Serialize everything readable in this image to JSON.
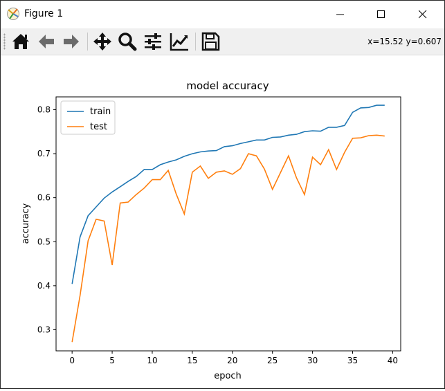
{
  "window": {
    "title": "Figure 1"
  },
  "toolbar": {
    "tools": [
      "home-icon",
      "back-arrow-icon",
      "forward-arrow-icon",
      "pan-icon",
      "zoom-icon",
      "subplots-config-icon",
      "edit-axis-icon",
      "save-icon"
    ],
    "coords": "x=15.52 y=0.607"
  },
  "chart_data": {
    "type": "line",
    "title": "model accuracy",
    "xlabel": "epoch",
    "ylabel": "accuracy",
    "xlim": [
      -2,
      41
    ],
    "ylim": [
      0.252,
      0.829
    ],
    "xticks": [
      0,
      5,
      10,
      15,
      20,
      25,
      30,
      35,
      40
    ],
    "yticks": [
      0.3,
      0.4,
      0.5,
      0.6,
      0.7,
      0.8
    ],
    "legend": "upper-left",
    "grid": false,
    "x": [
      0,
      1,
      2,
      3,
      4,
      5,
      6,
      7,
      8,
      9,
      10,
      11,
      12,
      13,
      14,
      15,
      16,
      17,
      18,
      19,
      20,
      21,
      22,
      23,
      24,
      25,
      26,
      27,
      28,
      29,
      30,
      31,
      32,
      33,
      34,
      35,
      36,
      37,
      38,
      39
    ],
    "series": [
      {
        "name": "train",
        "color": "#1f77b4",
        "values": [
          0.404,
          0.511,
          0.559,
          0.579,
          0.599,
          0.613,
          0.625,
          0.637,
          0.648,
          0.664,
          0.664,
          0.675,
          0.681,
          0.686,
          0.694,
          0.7,
          0.704,
          0.706,
          0.707,
          0.716,
          0.718,
          0.723,
          0.727,
          0.731,
          0.731,
          0.737,
          0.738,
          0.742,
          0.744,
          0.75,
          0.752,
          0.751,
          0.76,
          0.76,
          0.764,
          0.794,
          0.804,
          0.805,
          0.81,
          0.81
        ]
      },
      {
        "name": "test",
        "color": "#ff7f0e",
        "values": [
          0.272,
          0.378,
          0.502,
          0.551,
          0.547,
          0.447,
          0.588,
          0.59,
          0.607,
          0.622,
          0.641,
          0.641,
          0.662,
          0.608,
          0.563,
          0.658,
          0.672,
          0.644,
          0.658,
          0.661,
          0.653,
          0.666,
          0.7,
          0.695,
          0.665,
          0.619,
          0.657,
          0.695,
          0.645,
          0.607,
          0.692,
          0.675,
          0.709,
          0.664,
          0.703,
          0.735,
          0.736,
          0.741,
          0.742,
          0.74
        ]
      }
    ]
  }
}
